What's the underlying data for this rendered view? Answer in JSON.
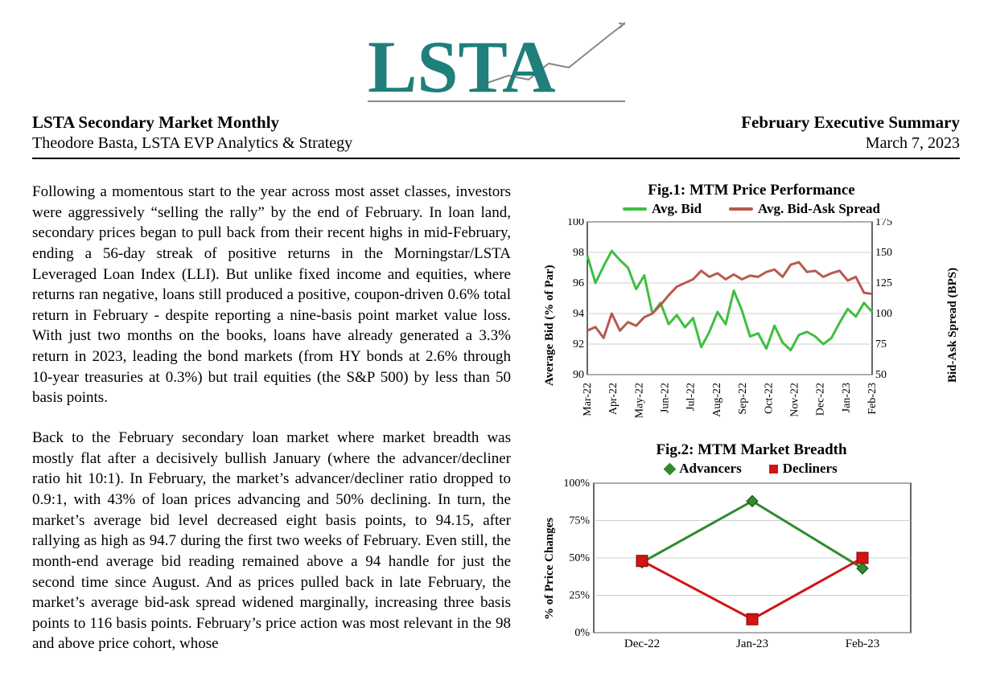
{
  "logo": {
    "text": "LSTA",
    "brand_color": "#1f7f7a"
  },
  "header": {
    "left_title": "LSTA Secondary Market Monthly",
    "left_sub": "Theodore Basta, LSTA EVP Analytics & Strategy",
    "right_title": "February Executive Summary",
    "right_date": "March 7, 2023"
  },
  "paragraphs": {
    "p1": "Following a momentous start to the year across most asset classes, investors were aggressively “selling the rally” by the end of February.  In loan land, secondary prices began to pull back from their recent highs in mid-February, ending a 56-day streak of positive returns in the Morningstar/LSTA Leveraged Loan Index (LLI).  But unlike fixed income and equities, where returns ran negative, loans still produced a positive, coupon-driven 0.6% total return in February - despite reporting a nine-basis point market value loss.  With just two months on the books, loans have already generated a 3.3% return in 2023, leading the bond markets (from HY bonds at 2.6% through 10-year treasuries at 0.3%) but trail equities (the S&P 500) by less than 50 basis points.",
    "p2": "Back to the February secondary loan market where market breadth was mostly flat after a decisively bullish January (where the advancer/decliner ratio hit 10:1).   In February, the market’s advancer/decliner ratio dropped to 0.9:1, with 43% of loan prices advancing and 50% declining.  In turn, the market’s average bid level decreased eight basis points, to 94.15, after rallying as high as 94.7 during the first two weeks of February.  Even still, the month-end average bid reading remained above a 94 handle for just the second time since August.  And as prices pulled back in late February, the market’s average bid-ask spread widened marginally, increasing three basis points to 116 basis points.  February’s price action was most relevant in the 98 and above price cohort, whose"
  },
  "fig1": {
    "title": "Fig.1: MTM Price Performance",
    "legend": {
      "a": "Avg. Bid",
      "b": "Avg. Bid-Ask Spread"
    },
    "colors": {
      "bid": "#3fbf3f",
      "spread": "#b85a4f",
      "grid": "#bfbfbf",
      "border": "#000000",
      "bg": "#ffffff"
    },
    "y_left": {
      "label": "Average Bid (% of Par)",
      "min": 90,
      "max": 100,
      "step": 2
    },
    "y_right": {
      "label": "Bid-Ask Spread (BPS)",
      "min": 50,
      "max": 175,
      "step": 25
    },
    "x_labels": [
      "Mar-22",
      "Apr-22",
      "May-22",
      "Jun-22",
      "Jul-22",
      "Aug-22",
      "Sep-22",
      "Oct-22",
      "Nov-22",
      "Dec-22",
      "Jan-23",
      "Feb-23"
    ],
    "bid_series": [
      97.8,
      96.0,
      97.1,
      98.1,
      97.5,
      97.0,
      95.6,
      96.5,
      94.0,
      94.7,
      93.3,
      93.9,
      93.1,
      93.7,
      91.8,
      92.8,
      94.1,
      93.3,
      95.5,
      94.2,
      92.5,
      92.7,
      91.7,
      93.2,
      92.1,
      91.6,
      92.6,
      92.8,
      92.5,
      92.0,
      92.4,
      93.4,
      94.3,
      93.8,
      94.7,
      94.1
    ],
    "spread_series": [
      86,
      89,
      80,
      100,
      86,
      93,
      90,
      97,
      100,
      107,
      115,
      122,
      125,
      128,
      135,
      130,
      133,
      128,
      132,
      128,
      131,
      130,
      134,
      136,
      130,
      140,
      142,
      134,
      135,
      130,
      133,
      135,
      127,
      130,
      117,
      116
    ],
    "line_width": 3
  },
  "fig2": {
    "title": "Fig.2: MTM Market Breadth",
    "legend": {
      "a": "Advancers",
      "b": "Decliners"
    },
    "colors": {
      "adv": "#2e8b2e",
      "dec": "#d11414",
      "grid": "#bfbfbf",
      "border": "#000000",
      "bg": "#ffffff"
    },
    "y": {
      "label": "% of Price Changes",
      "min": 0,
      "max": 100,
      "step": 25,
      "suffix": "%"
    },
    "x_labels": [
      "Dec-22",
      "Jan-23",
      "Feb-23"
    ],
    "adv_series": [
      47,
      88,
      43
    ],
    "dec_series": [
      48,
      9,
      50
    ],
    "line_width": 3,
    "marker_size": 7
  }
}
